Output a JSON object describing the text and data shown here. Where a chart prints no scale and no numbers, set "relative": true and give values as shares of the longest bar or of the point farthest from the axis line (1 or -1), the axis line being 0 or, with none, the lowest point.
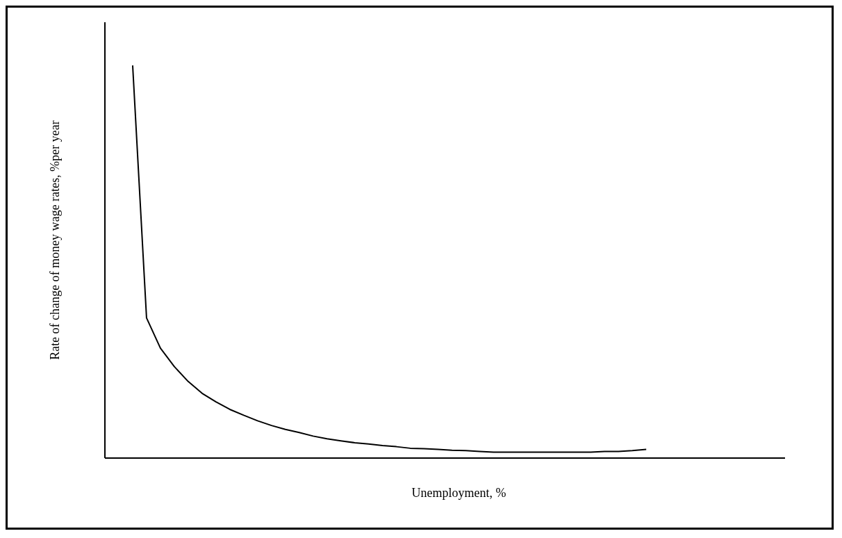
{
  "chart_data": {
    "type": "line",
    "relative": true,
    "xlabel": "Unemployment, %",
    "ylabel": "Rate of change of money wage rates, %per year",
    "grid": false,
    "legend": false,
    "marker": "none",
    "line_style": "solid",
    "categories": [
      null,
      null,
      null,
      null,
      null,
      null,
      null,
      null,
      null,
      null,
      null,
      null,
      null,
      null,
      null,
      null,
      null,
      null,
      null,
      null,
      null,
      null,
      null,
      null,
      null,
      null,
      null,
      null,
      null,
      null,
      null,
      null,
      null,
      null,
      null,
      null,
      null,
      null,
      null,
      null,
      null,
      null,
      null,
      null,
      null,
      null,
      null,
      null,
      null,
      null
    ],
    "series": [
      {
        "color": "#000000",
        "values": [
          null,
          null,
          1,
          0.357,
          0.28,
          0.233,
          0.195,
          0.165,
          0.143,
          0.124,
          0.109,
          0.095,
          0.083,
          0.073,
          0.065,
          0.056,
          0.049,
          0.044,
          0.039,
          0.036,
          0.032,
          0.029,
          0.025,
          0.024,
          0.022,
          0.02,
          0.019,
          0.017,
          0.015,
          0.015,
          0.015,
          0.015,
          0.015,
          0.015,
          0.015,
          0.015,
          0.017,
          0.017,
          0.019,
          0.022,
          null,
          null,
          null,
          null,
          null,
          null,
          null,
          null,
          null,
          null
        ]
      }
    ]
  }
}
